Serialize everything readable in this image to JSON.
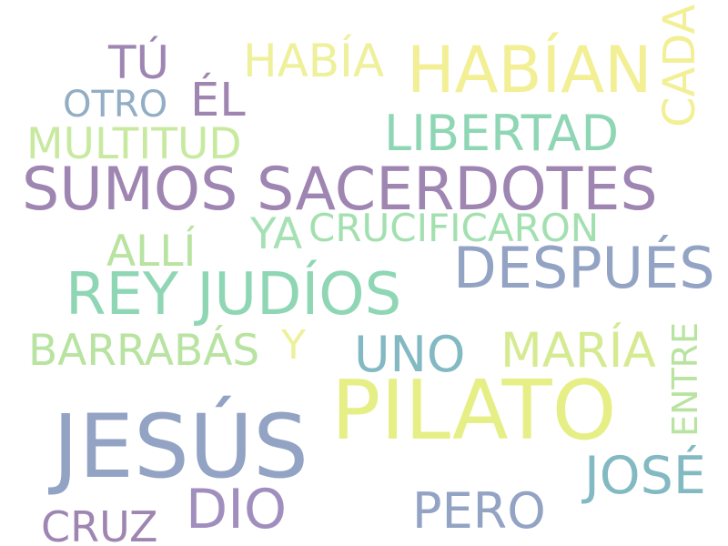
{
  "palette": {
    "purple": "#9f86b2",
    "slate": "#93a3c4",
    "teal": "#83b9c2",
    "mint": "#8fd6b5",
    "light_green": "#b8e3a0",
    "yellow": "#e6ef86",
    "pale_yellow": "#f2ef95"
  },
  "words": [
    {
      "text": "JESÚS",
      "color": "#93a3c4"
    },
    {
      "text": "PILATO",
      "color": "#e6ef86"
    },
    {
      "text": "SUMOS SACERDOTES",
      "color": "#9f86b2"
    },
    {
      "text": "REY JUDÍOS",
      "color": "#8fd6b5"
    },
    {
      "text": "DESPUÉS",
      "color": "#93a3c4"
    },
    {
      "text": "HABÍAN",
      "color": "#f2ef95"
    },
    {
      "text": "LIBERTAD",
      "color": "#8fd6b5"
    },
    {
      "text": "MARÍA",
      "color": "#d6ea92"
    },
    {
      "text": "DIO",
      "color": "#a08fbe"
    },
    {
      "text": "JOSÉ",
      "color": "#83b9c2"
    },
    {
      "text": "PERO",
      "color": "#93a3c4"
    },
    {
      "text": "UNO",
      "color": "#83b9c2"
    },
    {
      "text": "BARRABÁS",
      "color": "#b8e3a0"
    },
    {
      "text": "MULTITUD",
      "color": "#c8eaa0"
    },
    {
      "text": "CRUCIFICARON",
      "color": "#a3e0b0"
    },
    {
      "text": "ALLÍ",
      "color": "#b8e3a0"
    },
    {
      "text": "YA",
      "color": "#a6e0b4"
    },
    {
      "text": "TÚ",
      "color": "#9f86b2"
    },
    {
      "text": "ÉL",
      "color": "#9f86b2"
    },
    {
      "text": "HABÍA",
      "color": "#eef09a"
    },
    {
      "text": "OTRO",
      "color": "#93aec4"
    },
    {
      "text": "CRUZ",
      "color": "#9f86b2"
    },
    {
      "text": "Y",
      "color": "#eef09a"
    },
    {
      "text": "CADA",
      "color": "#f2ef95"
    },
    {
      "text": "ENTRE",
      "color": "#b8e3a0"
    }
  ]
}
